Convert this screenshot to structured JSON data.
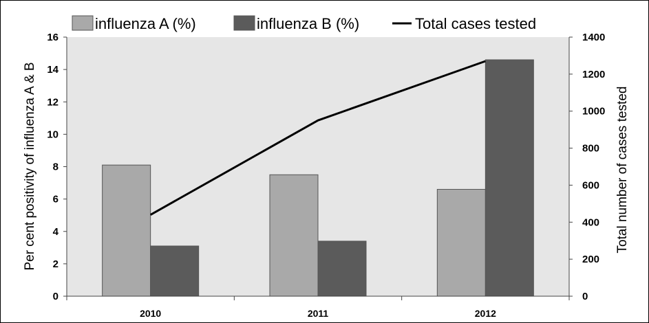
{
  "chart_data": {
    "type": "bar",
    "categories": [
      "2010",
      "2011",
      "2012"
    ],
    "series": [
      {
        "name": "influenza A (%)",
        "values": [
          8.1,
          7.5,
          6.6
        ],
        "color": "#a9a9a9",
        "axis": "left",
        "kind": "bar"
      },
      {
        "name": "influenza B (%)",
        "values": [
          3.1,
          3.4,
          14.6
        ],
        "color": "#5b5b5b",
        "axis": "left",
        "kind": "bar"
      },
      {
        "name": "Total cases tested",
        "values": [
          440,
          950,
          1270
        ],
        "color": "#000000",
        "axis": "right",
        "kind": "line"
      }
    ],
    "ylabel": "Per cent positivity of influenza A & B",
    "y2label": "Total number of cases tested",
    "ylim": [
      0,
      16
    ],
    "y2lim": [
      0,
      1400
    ],
    "yticks": [
      "0",
      "2",
      "4",
      "6",
      "8",
      "10",
      "12",
      "14",
      "16"
    ],
    "y2ticks": [
      "0",
      "200",
      "400",
      "600",
      "800",
      "1000",
      "1200",
      "1400"
    ],
    "grid": false,
    "plot_background": "#e6e6e6",
    "legend_position": "top"
  }
}
